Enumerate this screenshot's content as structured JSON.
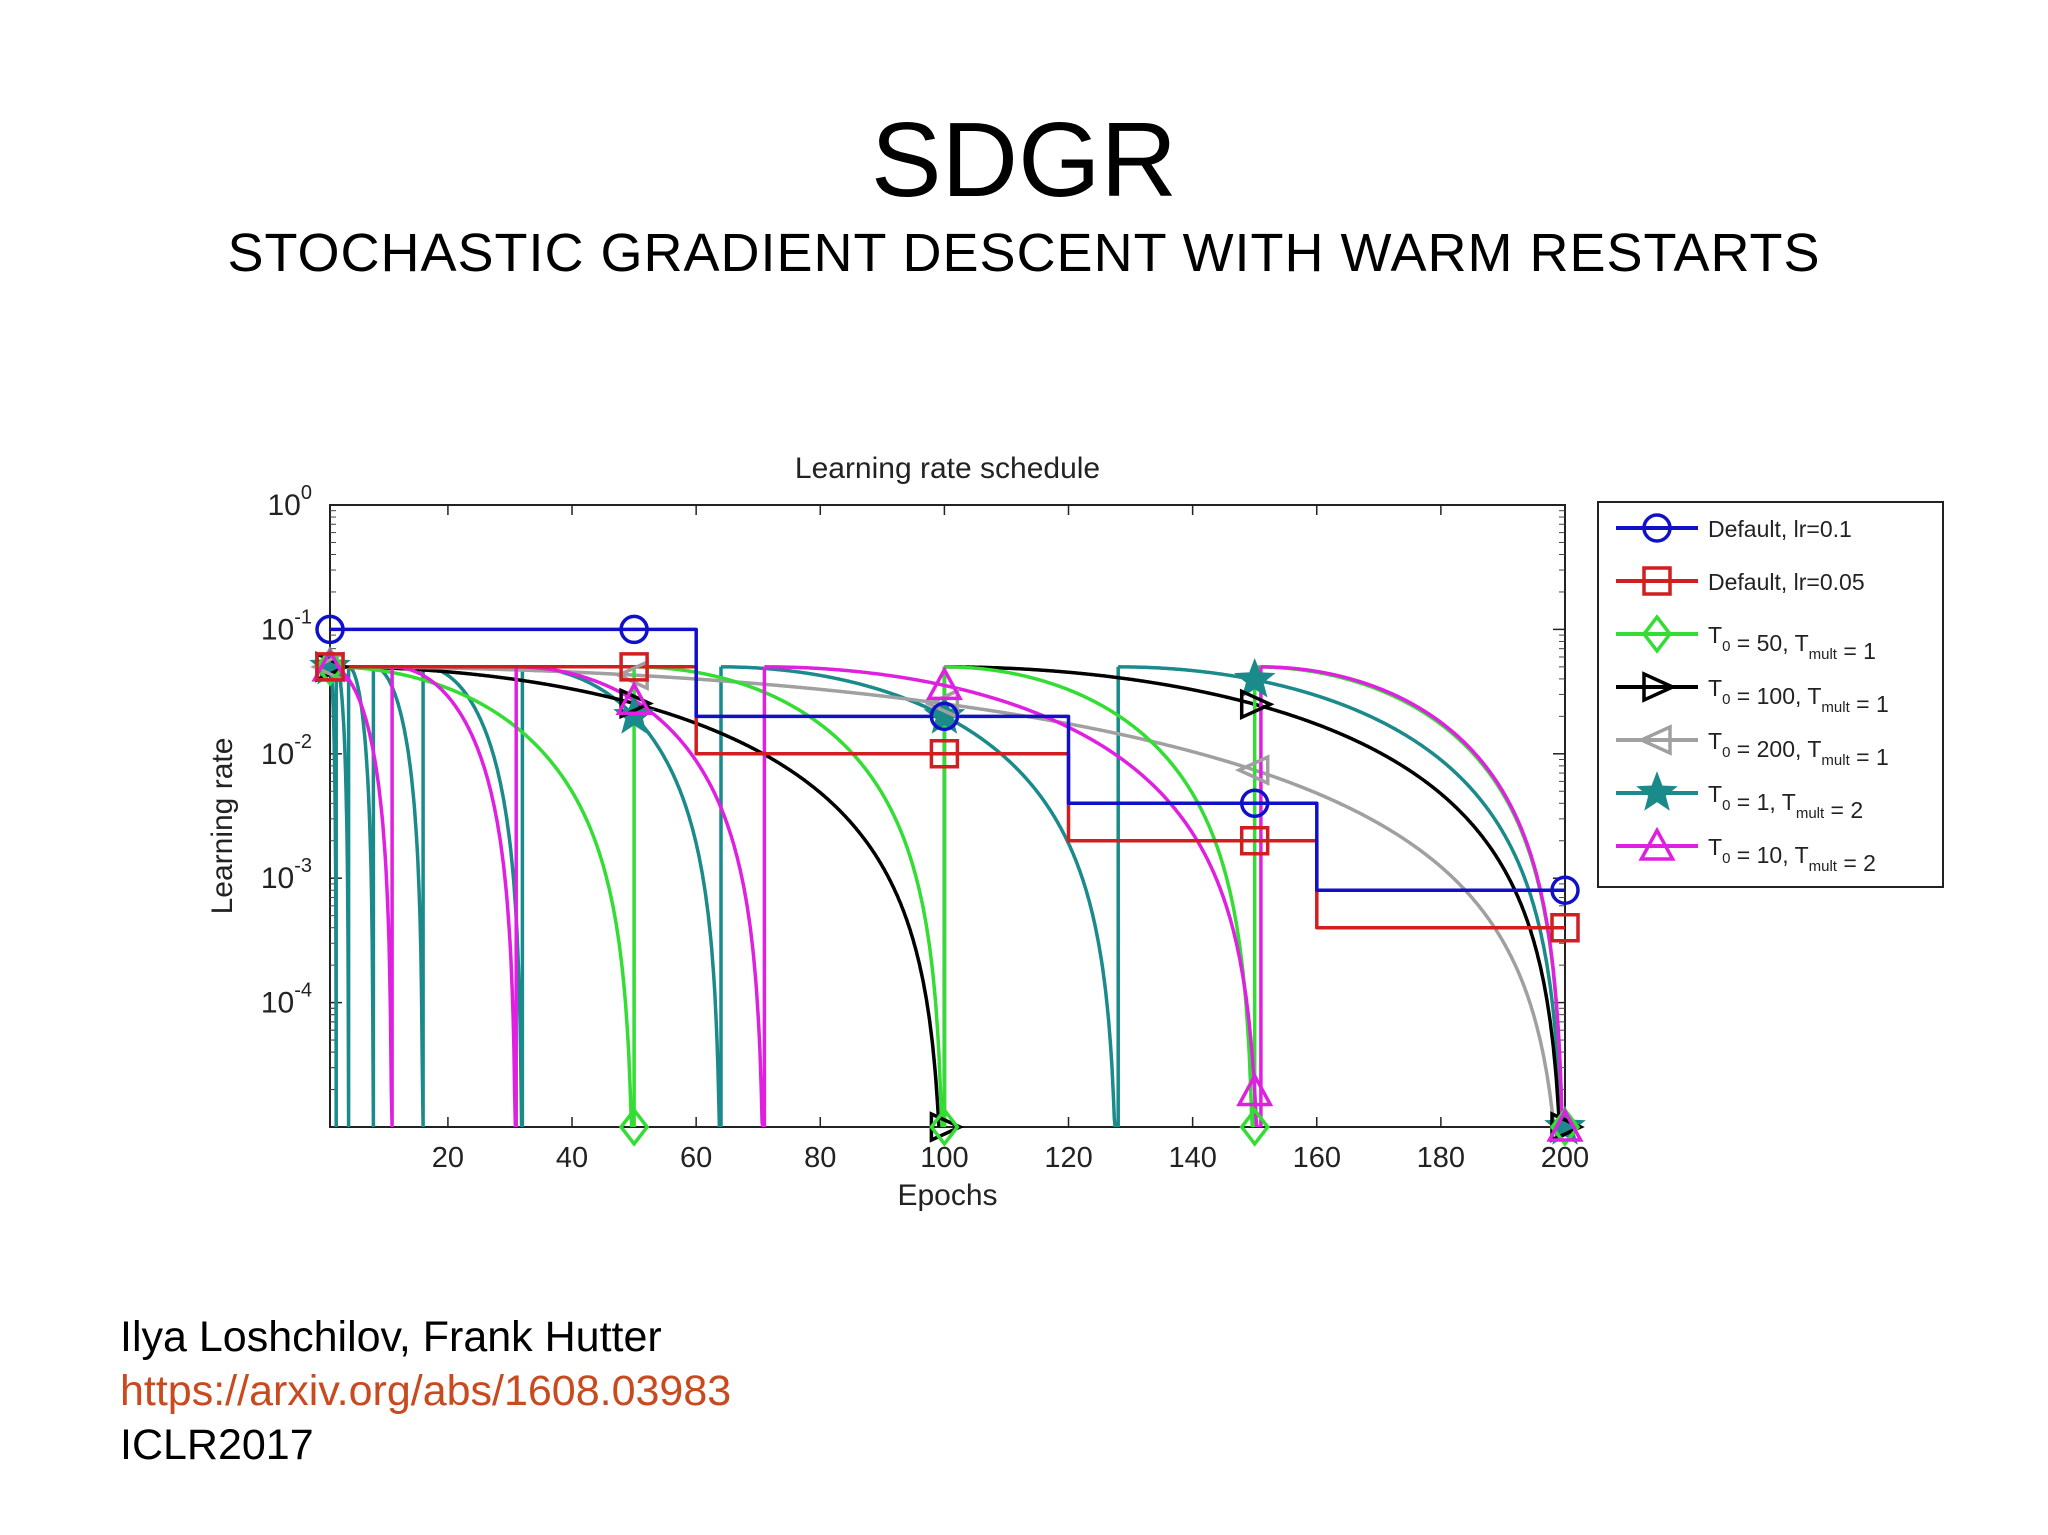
{
  "slide": {
    "title": "SDGR",
    "subtitle": "STOCHASTIC GRADIENT DESCENT WITH WARM RESTARTS",
    "authors": "Ilya Loshchilov, Frank Hutter",
    "link": "https://arxiv.org/abs/1608.03983",
    "venue": "ICLR2017"
  },
  "colors": {
    "link": "#c84a1e"
  },
  "chart_data": {
    "type": "line",
    "title": "Learning rate schedule",
    "xlabel": "Epochs",
    "ylabel": "Learning rate",
    "xlim": [
      1,
      200
    ],
    "ylim": [
      1e-05,
      1
    ],
    "yscale": "log",
    "x_ticks": [
      20,
      40,
      60,
      80,
      100,
      120,
      140,
      160,
      180,
      200
    ],
    "y_ticks": [
      {
        "base": "10",
        "exp": "0",
        "value": 1
      },
      {
        "base": "10",
        "exp": "-1",
        "value": 0.1
      },
      {
        "base": "10",
        "exp": "-2",
        "value": 0.01
      },
      {
        "base": "10",
        "exp": "-3",
        "value": 0.001
      },
      {
        "base": "10",
        "exp": "-4",
        "value": 0.0001
      }
    ],
    "legend_position": "right",
    "series": [
      {
        "name": "Default, lr=0.1",
        "legend_parts": [
          {
            "t": "Default, lr=0.1"
          }
        ],
        "color": "#1010c8",
        "marker": "circle",
        "kind": "step",
        "x": [
          1,
          60,
          120,
          160,
          200
        ],
        "values": [
          0.1,
          0.02,
          0.004,
          0.0008,
          0.0008
        ],
        "marker_x": [
          1,
          50,
          100,
          150,
          200
        ]
      },
      {
        "name": "Default, lr=0.05",
        "legend_parts": [
          {
            "t": "Default, lr=0.05"
          }
        ],
        "color": "#d21e1e",
        "marker": "square",
        "kind": "step",
        "x": [
          1,
          60,
          120,
          160,
          200
        ],
        "values": [
          0.05,
          0.01,
          0.002,
          0.0004,
          0.0004
        ],
        "marker_x": [
          1,
          50,
          100,
          150,
          200
        ]
      },
      {
        "name": "T0 = 50, Tmult = 1",
        "legend_parts": [
          {
            "t": "T"
          },
          {
            "sub": "0"
          },
          {
            "t": " = 50, T"
          },
          {
            "sub": "mult"
          },
          {
            "t": " = 1"
          }
        ],
        "color": "#33dd33",
        "marker": "diamond",
        "kind": "sgdr",
        "lr_max": 0.05,
        "restarts": [
          1,
          50,
          100,
          150,
          200
        ],
        "marker_x": [
          1,
          50,
          100,
          150,
          200
        ]
      },
      {
        "name": "T0 = 100, Tmult = 1",
        "legend_parts": [
          {
            "t": "T"
          },
          {
            "sub": "0"
          },
          {
            "t": " = 100, T"
          },
          {
            "sub": "mult"
          },
          {
            "t": " = 1"
          }
        ],
        "color": "#000000",
        "marker": "triangle-right",
        "kind": "sgdr",
        "lr_max": 0.05,
        "restarts": [
          1,
          100,
          200
        ],
        "marker_x": [
          1,
          50,
          100,
          150,
          200
        ]
      },
      {
        "name": "T0 = 200, Tmult = 1",
        "legend_parts": [
          {
            "t": "T"
          },
          {
            "sub": "0"
          },
          {
            "t": " = 200, T"
          },
          {
            "sub": "mult"
          },
          {
            "t": " = 1"
          }
        ],
        "color": "#a0a0a0",
        "marker": "triangle-left",
        "kind": "sgdr",
        "lr_max": 0.05,
        "restarts": [
          1,
          200
        ],
        "marker_x": [
          1,
          50,
          100,
          150
        ]
      },
      {
        "name": "T0 = 1, Tmult = 2",
        "legend_parts": [
          {
            "t": "T"
          },
          {
            "sub": "0"
          },
          {
            "t": " = 1, T"
          },
          {
            "sub": "mult"
          },
          {
            "t": " = 2"
          }
        ],
        "color": "#1a8a8a",
        "marker": "star",
        "kind": "sgdr",
        "lr_max": 0.05,
        "restarts": [
          1,
          2,
          4,
          8,
          16,
          32,
          64,
          128,
          200
        ],
        "marker_x": [
          1,
          50,
          100,
          150,
          200
        ]
      },
      {
        "name": "T0 = 10, Tmult = 2",
        "legend_parts": [
          {
            "t": "T"
          },
          {
            "sub": "0"
          },
          {
            "t": " = 10, T"
          },
          {
            "sub": "mult"
          },
          {
            "t": " = 2"
          }
        ],
        "color": "#e020e0",
        "marker": "triangle-up",
        "kind": "sgdr",
        "lr_max": 0.05,
        "restarts": [
          1,
          11,
          31,
          71,
          151,
          200
        ],
        "marker_x": [
          1,
          50,
          100,
          150,
          200
        ]
      }
    ]
  }
}
